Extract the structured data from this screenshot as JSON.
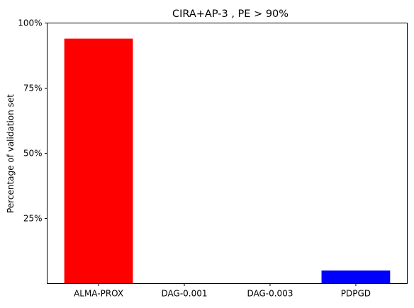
{
  "chart_data": {
    "type": "bar",
    "title": "CIRA+AP-3 , PE > 90%",
    "xlabel": "",
    "ylabel": "Percentage of validation set",
    "categories": [
      "ALMA-PROX",
      "DAG-0.001",
      "DAG-0.003",
      "PDPGD"
    ],
    "values": [
      94,
      0,
      0,
      5
    ],
    "bar_colors": [
      "#ff0000",
      "#ff0000",
      "#ff0000",
      "#0000ff"
    ],
    "ylim": [
      0,
      100
    ],
    "yticks": [
      25,
      50,
      75,
      100
    ],
    "ytick_labels": [
      "25%",
      "50%",
      "75%",
      "100%"
    ],
    "grid": false,
    "legend": "none"
  }
}
